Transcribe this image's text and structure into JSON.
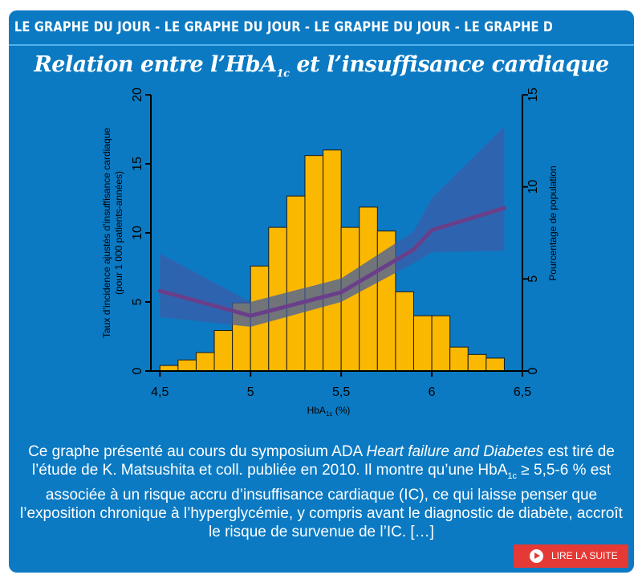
{
  "banner": {
    "text": "LE GRAPHE DU JOUR - LE GRAPHE DU JOUR - LE GRAPHE DU JOUR - LE GRAPHE DU JOUR - LE GRAPH"
  },
  "title": {
    "before": "Relation entre l’HbA",
    "sub": "1c",
    "after": " et l’insuffisance cardiaque"
  },
  "description": {
    "p1": "Ce graphe présenté au cours du symposium ADA ",
    "em": "Heart failure and Diabetes",
    "p2": " est tiré de l’étude de K. Matsushita et coll. publiée en 2010. Il montre qu’une HbA",
    "sub": "1c",
    "p3": " ≥ 5,5-6 % est associée à un risque accru d’insuffisance cardiaque (IC), ce qui laisse penser que l’exposition chronique à l’hyperglycémie, y compris avant le diagnostic de diabète, accroît le risque de survenue de l’IC. […]"
  },
  "button": {
    "label": "LIRE LA SUITE",
    "icon": "play-icon"
  },
  "colors": {
    "background": "#0b7ac3",
    "bars": "#fbb800",
    "line": "#6a3f8a",
    "band": "#3b5ba8",
    "button": "#e53935"
  },
  "chart_data": {
    "type": "bar",
    "xlabel_main": "HbA",
    "xlabel_sub": "1c",
    "xlabel_after": " (%)",
    "ylabel_left_line1": "Taux d’incidence ajustés d’insuffisance cardiaque",
    "ylabel_left_line2": "(pour 1 000 patients-années)",
    "ylabel_right": "Pourcentage de population",
    "x_ticks": [
      4.5,
      5,
      5.5,
      6,
      6.5
    ],
    "x_tick_labels": [
      "4,5",
      "5",
      "5,5",
      "6",
      "6,5"
    ],
    "xlim": [
      4.45,
      6.5
    ],
    "y_left_ticks": [
      0,
      5,
      10,
      15,
      20
    ],
    "y_left_lim": [
      0,
      20
    ],
    "y_right_ticks": [
      0,
      5,
      10,
      15
    ],
    "y_right_lim": [
      0,
      15
    ],
    "bars": {
      "name": "Pourcentage de population",
      "axis": "right",
      "bin_width": 0.1,
      "x": [
        4.5,
        4.6,
        4.7,
        4.8,
        4.9,
        5.0,
        5.1,
        5.2,
        5.3,
        5.4,
        5.5,
        5.6,
        5.7,
        5.8,
        5.9,
        6.0,
        6.1,
        6.2,
        6.3
      ],
      "values": [
        0.3,
        0.6,
        1.0,
        2.2,
        3.7,
        5.7,
        7.8,
        9.5,
        11.7,
        12.0,
        7.8,
        8.9,
        7.6,
        4.3,
        3.0,
        3.0,
        1.3,
        0.9,
        0.7
      ]
    },
    "line": {
      "name": "Taux d’incidence ajustés d’insuffisance cardiaque",
      "axis": "left",
      "x": [
        4.5,
        5.0,
        5.5,
        5.9,
        6.0,
        6.4
      ],
      "y": [
        5.8,
        4.0,
        5.7,
        8.8,
        10.2,
        11.8
      ],
      "ci_lower": [
        3.9,
        3.2,
        5.0,
        7.8,
        8.6,
        8.7
      ],
      "ci_upper": [
        8.5,
        5.0,
        6.7,
        10.1,
        12.5,
        17.7
      ]
    }
  }
}
